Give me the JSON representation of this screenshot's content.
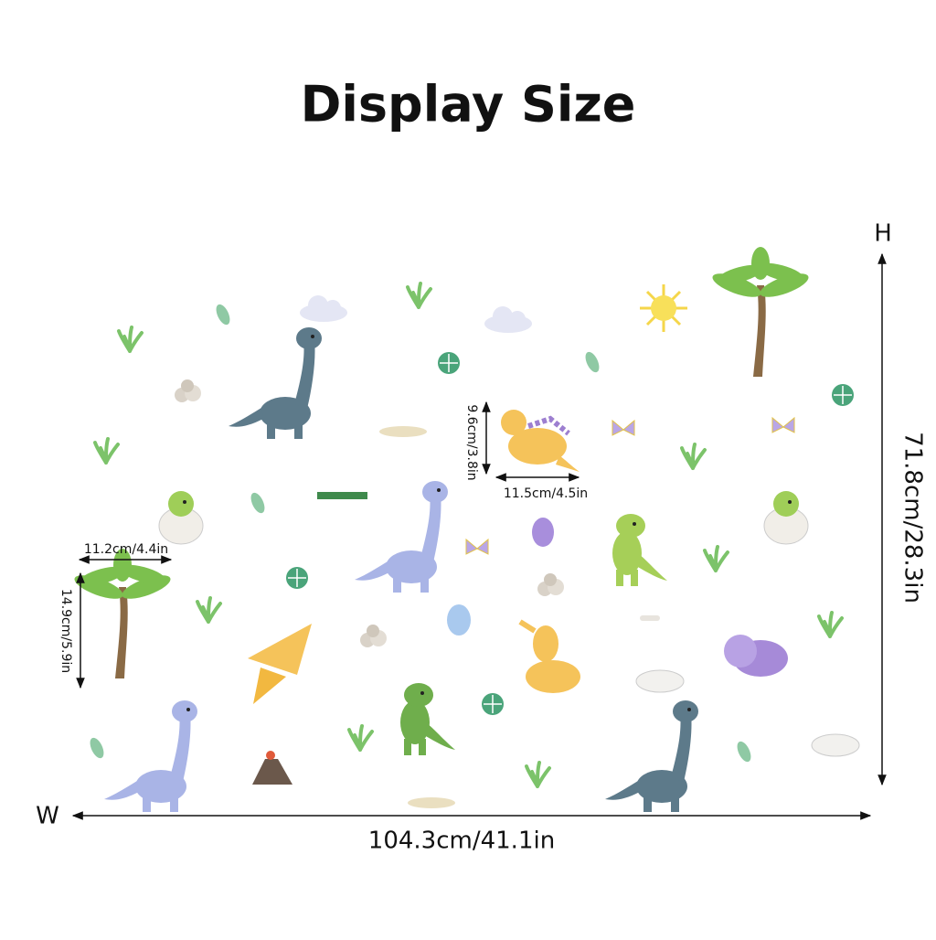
{
  "header": {
    "title": "Display Size"
  },
  "overall": {
    "width_letter": "W",
    "width": "104.3cm/41.1in",
    "height_letter": "H",
    "height": "71.8cm/28.3in"
  },
  "dinosaur": {
    "width": "11.5cm/4.5in",
    "height": "9.6cm/3.8in"
  },
  "palm_tree": {
    "width": "11.2cm/4.4in",
    "height": "14.9cm/5.9in"
  }
}
